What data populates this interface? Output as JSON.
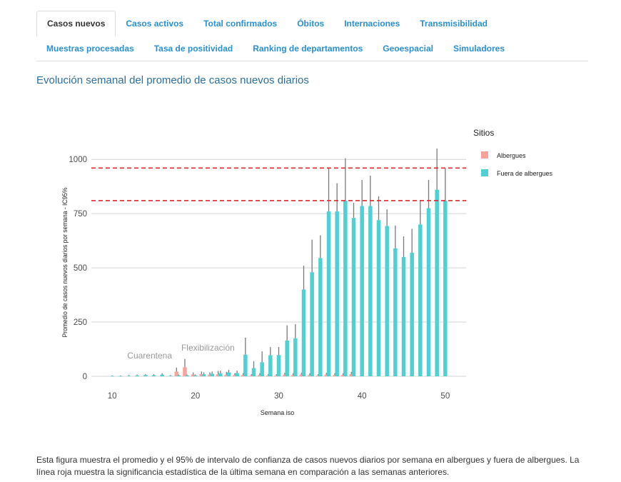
{
  "tabs": {
    "row1": [
      "Casos nuevos",
      "Casos activos",
      "Total confirmados",
      "Óbitos",
      "Internaciones",
      "Transmisibilidad"
    ],
    "row2": [
      "Muestras procesadas",
      "Tasa de positividad",
      "Ranking de departamentos",
      "Geoespacial",
      "Simuladores"
    ]
  },
  "heading": "Evolución semanal del promedio de casos nuevos diarios",
  "caption": "Esta figura muestra el promedio y el 95% de intervalo de confianza de casos nuevos diarios por semana en albergues y fuera de albergues. La línea roja muestra la significancia estadística de la última semana en comparación a las semanas anteriores.",
  "colors": {
    "albergues": "#f8a29a",
    "fuera": "#4fd1d3",
    "errorbar": "#7a7a7a",
    "refline": "#e3262b",
    "grid": "#d4d4d4"
  },
  "chart_data": {
    "type": "bar",
    "xlabel": "Semana iso",
    "ylabel": "Promedio de casos nuevos diarios por semana - IC95%",
    "xlim": [
      7.5,
      52.5
    ],
    "ylim": [
      0,
      1050
    ],
    "x_ticks": [
      10,
      20,
      30,
      40,
      50
    ],
    "y_ticks": [
      0,
      250,
      500,
      750,
      1000
    ],
    "y_tick_labels": [
      "0",
      "250",
      "500",
      "750",
      "1000"
    ],
    "legend_title": "Sitios",
    "reference_lines": [
      960,
      810
    ],
    "annotations": [
      {
        "text": "Cuarentena",
        "x": 14.5,
        "y": 82
      },
      {
        "text": "Flexibilización",
        "x": 21.5,
        "y": 118
      }
    ],
    "series": [
      {
        "name": "Albergues",
        "x": [
          18,
          19,
          20,
          21,
          22,
          23,
          24,
          25,
          26,
          27,
          28,
          29,
          30,
          31,
          32,
          33,
          34,
          35,
          36,
          37,
          38,
          39
        ],
        "values": [
          22,
          42,
          8,
          10,
          8,
          10,
          8,
          6,
          6,
          4,
          6,
          4,
          4,
          8,
          6,
          8,
          6,
          4,
          8,
          6,
          6,
          10
        ],
        "upper": [
          40,
          80,
          18,
          22,
          18,
          25,
          20,
          14,
          14,
          10,
          14,
          10,
          10,
          16,
          14,
          16,
          14,
          10,
          16,
          14,
          14,
          20
        ]
      },
      {
        "name": "Fuera de albergues",
        "x": [
          10,
          11,
          12,
          13,
          14,
          15,
          16,
          17,
          18,
          19,
          20,
          21,
          22,
          23,
          24,
          25,
          26,
          27,
          28,
          29,
          30,
          31,
          32,
          33,
          34,
          35,
          36,
          37,
          38,
          39,
          40,
          41,
          42,
          43,
          44,
          45,
          46,
          47,
          48,
          49,
          50
        ],
        "values": [
          1,
          1,
          2,
          4,
          6,
          5,
          8,
          2,
          4,
          4,
          4,
          10,
          12,
          14,
          18,
          15,
          100,
          38,
          65,
          97,
          98,
          165,
          175,
          400,
          480,
          545,
          760,
          760,
          810,
          730,
          785,
          785,
          720,
          693,
          590,
          550,
          570,
          700,
          775,
          860,
          810
        ],
        "upper": [
          4,
          4,
          6,
          8,
          10,
          10,
          14,
          6,
          8,
          8,
          8,
          18,
          22,
          26,
          30,
          26,
          178,
          70,
          115,
          135,
          135,
          235,
          240,
          510,
          630,
          650,
          960,
          890,
          1005,
          800,
          905,
          925,
          830,
          770,
          695,
          645,
          680,
          810,
          905,
          1050,
          960
        ]
      }
    ]
  }
}
